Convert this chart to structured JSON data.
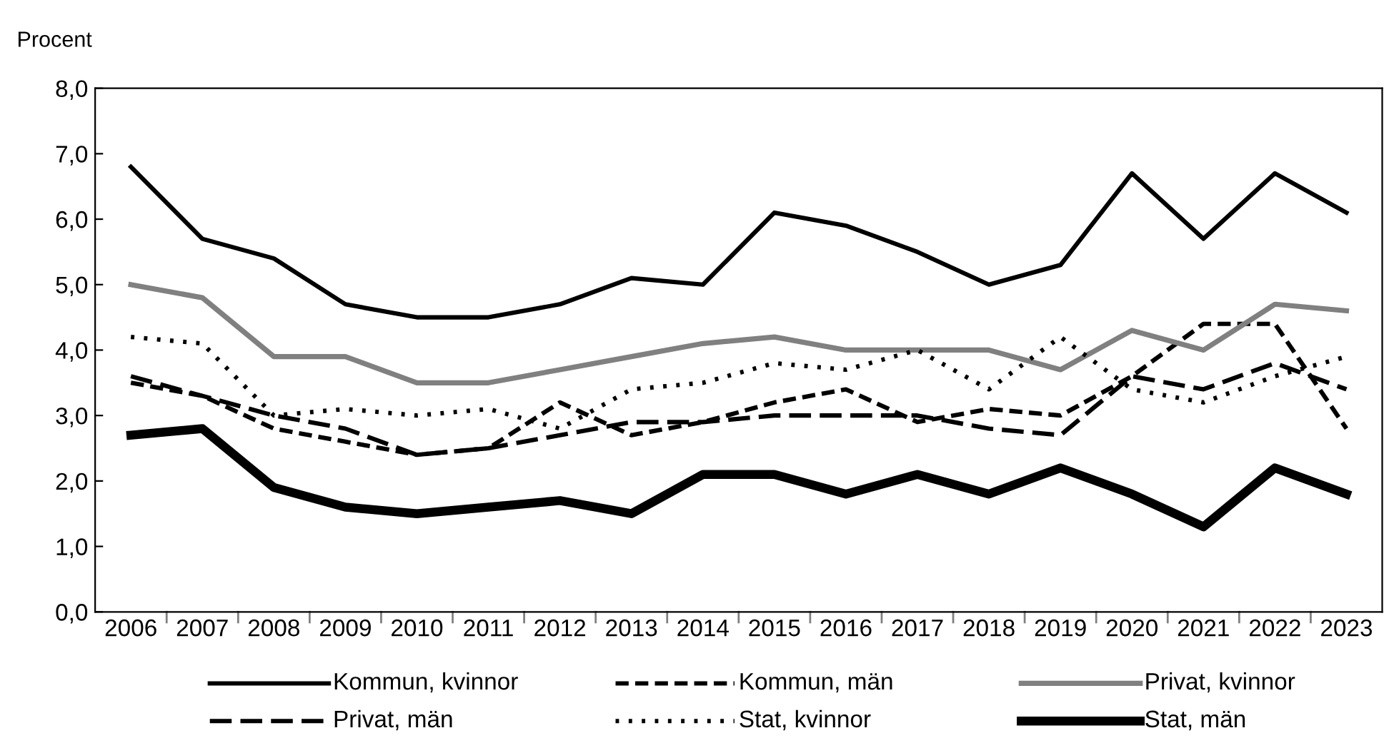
{
  "chart_data": {
    "type": "line",
    "ylabel": "Procent",
    "categories": [
      "2006",
      "2007",
      "2008",
      "2009",
      "2010",
      "2011",
      "2012",
      "2013",
      "2014",
      "2015",
      "2016",
      "2017",
      "2018",
      "2019",
      "2020",
      "2021",
      "2022",
      "2023"
    ],
    "ylim": [
      0,
      8
    ],
    "yticks": [
      {
        "value": 0,
        "label": "0,0"
      },
      {
        "value": 1,
        "label": "1,0"
      },
      {
        "value": 2,
        "label": "2,0"
      },
      {
        "value": 3,
        "label": "3,0"
      },
      {
        "value": 4,
        "label": "4,0"
      },
      {
        "value": 5,
        "label": "5,0"
      },
      {
        "value": 6,
        "label": "6,0"
      },
      {
        "value": 7,
        "label": "7,0"
      },
      {
        "value": 8,
        "label": "8,0"
      }
    ],
    "grid": false,
    "legend": "bottom",
    "marker": "none",
    "series": [
      {
        "name": "Kommun, kvinnor",
        "color": "#000000",
        "line_style": "solid",
        "values": [
          6.8,
          5.7,
          5.4,
          4.7,
          4.5,
          4.5,
          4.7,
          5.1,
          5.0,
          6.1,
          5.9,
          5.5,
          5.0,
          5.3,
          6.7,
          5.7,
          6.7,
          6.1
        ]
      },
      {
        "name": "Kommun, män",
        "color": "#000000",
        "line_style": "dashed",
        "values": [
          3.5,
          3.3,
          2.8,
          2.6,
          2.4,
          2.5,
          3.2,
          2.7,
          2.9,
          3.2,
          3.4,
          2.9,
          3.1,
          3.0,
          3.6,
          4.4,
          4.4,
          2.8
        ]
      },
      {
        "name": "Privat, kvinnor",
        "color": "#808080",
        "line_style": "solid",
        "values": [
          5.0,
          4.8,
          3.9,
          3.9,
          3.5,
          3.5,
          3.7,
          3.9,
          4.1,
          4.2,
          4.0,
          4.0,
          4.0,
          3.7,
          4.3,
          4.0,
          4.7,
          4.6
        ]
      },
      {
        "name": "Privat, män",
        "color": "#000000",
        "line_style": "dashed",
        "values": [
          3.6,
          3.3,
          3.0,
          2.8,
          2.4,
          2.5,
          2.7,
          2.9,
          2.9,
          3.0,
          3.0,
          3.0,
          2.8,
          2.7,
          3.6,
          3.4,
          3.8,
          3.4
        ]
      },
      {
        "name": "Stat, kvinnor",
        "color": "#000000",
        "line_style": "dotted",
        "values": [
          4.2,
          4.1,
          3.0,
          3.1,
          3.0,
          3.1,
          2.8,
          3.4,
          3.5,
          3.8,
          3.7,
          4.0,
          3.4,
          4.2,
          3.4,
          3.2,
          3.6,
          3.9
        ]
      },
      {
        "name": "Stat, män",
        "color": "#000000",
        "line_style": "solid",
        "values": [
          2.7,
          2.8,
          1.9,
          1.6,
          1.5,
          1.6,
          1.7,
          1.5,
          2.1,
          2.1,
          1.8,
          2.1,
          1.8,
          2.2,
          1.8,
          1.3,
          2.2,
          1.8
        ]
      }
    ]
  }
}
